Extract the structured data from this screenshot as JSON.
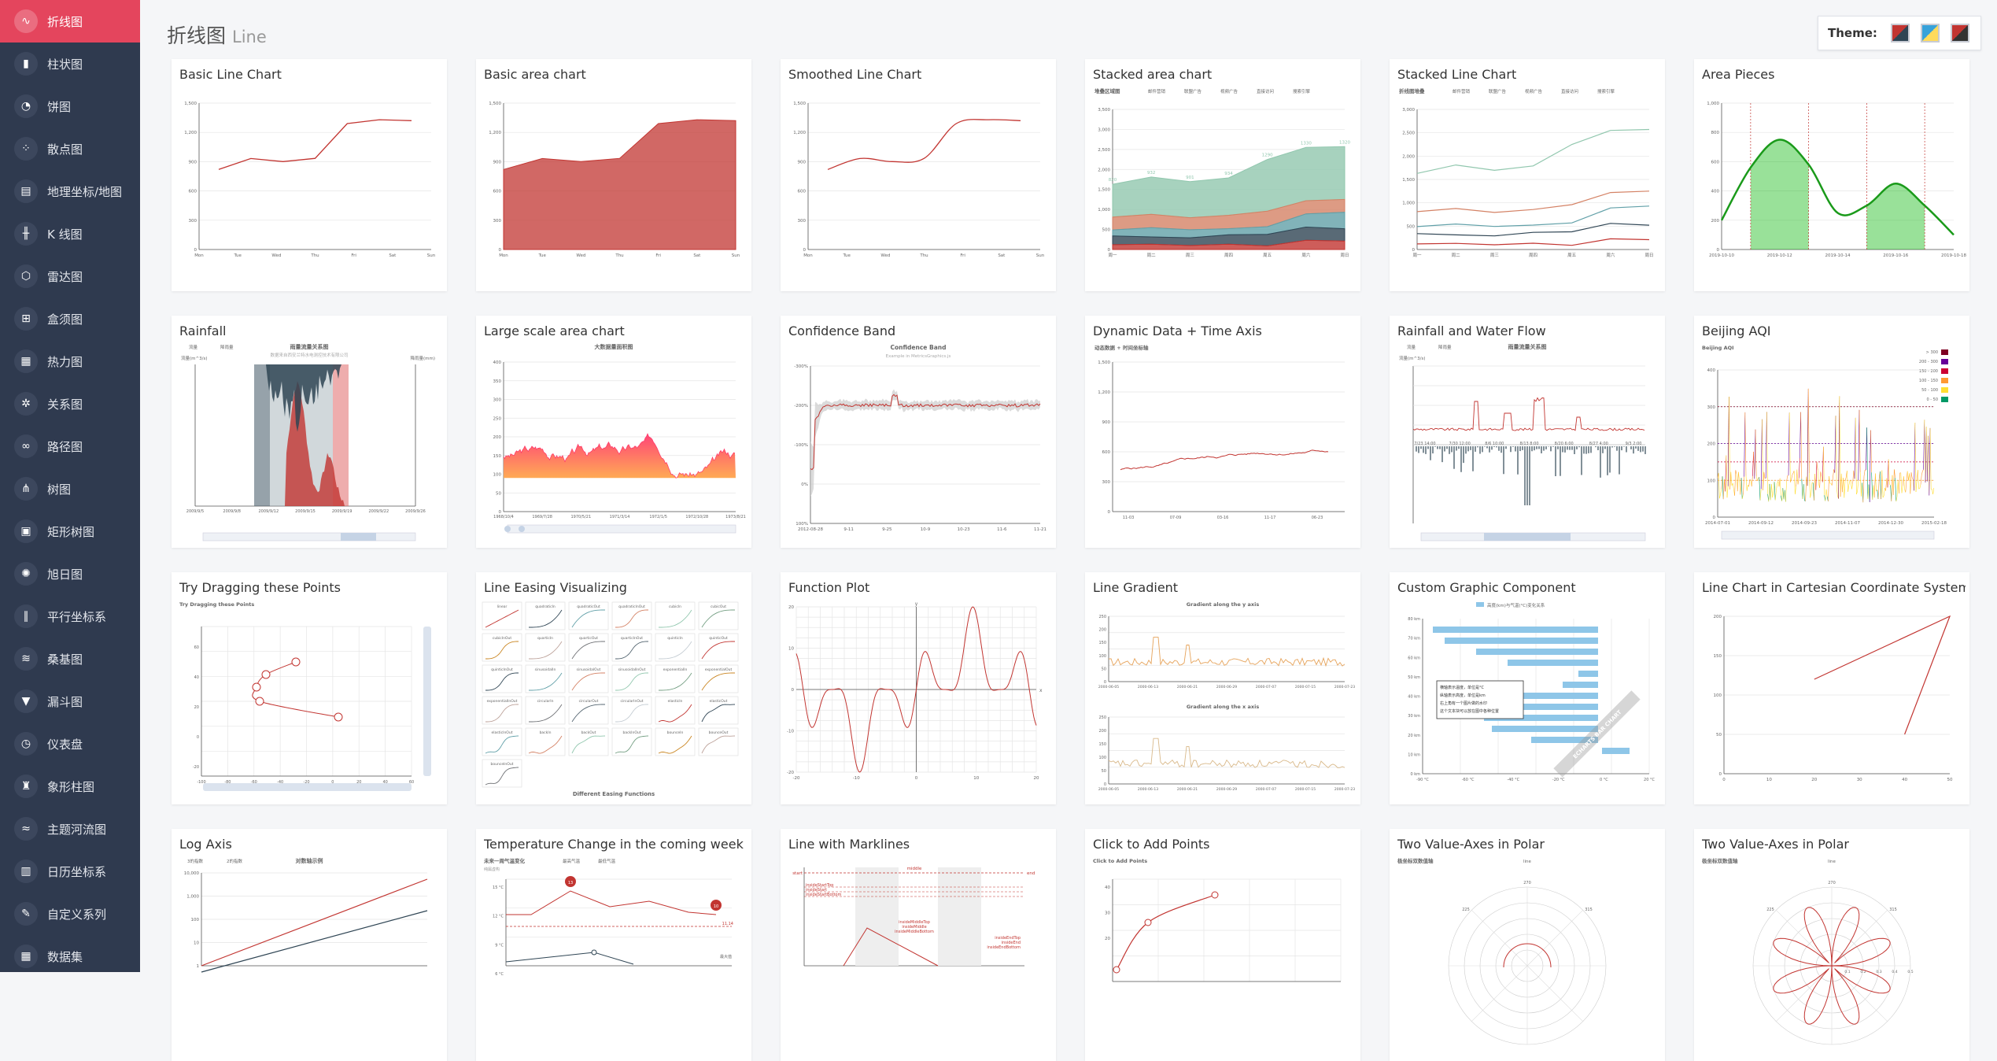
{
  "page": {
    "title": "折线图",
    "subtitle": "Line"
  },
  "theme": {
    "label": "Theme:",
    "options": [
      {
        "name": "default",
        "color": "#c23531"
      },
      {
        "name": "light",
        "color": "#37a2da"
      },
      {
        "name": "dark",
        "color": "#c23531"
      }
    ]
  },
  "sidebar": {
    "items": [
      {
        "label": "折线图",
        "icon": "line-chart-icon",
        "glyph": "∿",
        "active": true
      },
      {
        "label": "柱状图",
        "icon": "bar-chart-icon",
        "glyph": "▮"
      },
      {
        "label": "饼图",
        "icon": "pie-chart-icon",
        "glyph": "◔"
      },
      {
        "label": "散点图",
        "icon": "scatter-icon",
        "glyph": "⁘"
      },
      {
        "label": "地理坐标/地图",
        "icon": "map-icon",
        "glyph": "▤"
      },
      {
        "label": "K 线图",
        "icon": "candlestick-icon",
        "glyph": "╫"
      },
      {
        "label": "雷达图",
        "icon": "radar-icon",
        "glyph": "⬡"
      },
      {
        "label": "盒须图",
        "icon": "boxplot-icon",
        "glyph": "⊞"
      },
      {
        "label": "热力图",
        "icon": "heatmap-icon",
        "glyph": "▦"
      },
      {
        "label": "关系图",
        "icon": "graph-icon",
        "glyph": "✲"
      },
      {
        "label": "路径图",
        "icon": "lines-icon",
        "glyph": "∞"
      },
      {
        "label": "树图",
        "icon": "tree-icon",
        "glyph": "⋔"
      },
      {
        "label": "矩形树图",
        "icon": "treemap-icon",
        "glyph": "▣"
      },
      {
        "label": "旭日图",
        "icon": "sunburst-icon",
        "glyph": "✺"
      },
      {
        "label": "平行坐标系",
        "icon": "parallel-icon",
        "glyph": "∥"
      },
      {
        "label": "桑基图",
        "icon": "sankey-icon",
        "glyph": "≋"
      },
      {
        "label": "漏斗图",
        "icon": "funnel-icon",
        "glyph": "▼"
      },
      {
        "label": "仪表盘",
        "icon": "gauge-icon",
        "glyph": "◷"
      },
      {
        "label": "象形柱图",
        "icon": "pictorial-bar-icon",
        "glyph": "♜"
      },
      {
        "label": "主题河流图",
        "icon": "theme-river-icon",
        "glyph": "≈"
      },
      {
        "label": "日历坐标系",
        "icon": "calendar-icon",
        "glyph": "▥"
      },
      {
        "label": "自定义系列",
        "icon": "custom-series-icon",
        "glyph": "✎"
      },
      {
        "label": "数据集",
        "icon": "dataset-icon",
        "glyph": "▦"
      }
    ]
  },
  "cards": [
    {
      "title": "Basic Line Chart",
      "kind": "basic-line"
    },
    {
      "title": "Basic area chart",
      "kind": "basic-area"
    },
    {
      "title": "Smoothed Line Chart",
      "kind": "smooth-line"
    },
    {
      "title": "Stacked area chart",
      "kind": "stacked-area",
      "inner_title": "堆叠区域图",
      "legend": [
        "邮件营销",
        "联盟广告",
        "视频广告",
        "直接访问",
        "搜索引擎"
      ],
      "categories": [
        "周一",
        "周二",
        "周三",
        "周四",
        "周五",
        "周六",
        "周日"
      ],
      "labels": [
        "820",
        "932",
        "901",
        "934",
        "1290",
        "1330",
        "1320"
      ],
      "ticks": [
        "0",
        "500",
        "1,000",
        "1,500",
        "2,000",
        "2,500",
        "3,000",
        "3,500"
      ]
    },
    {
      "title": "Stacked Line Chart",
      "kind": "stacked-line",
      "inner_title": "折线图堆叠",
      "legend": [
        "邮件营销",
        "联盟广告",
        "视频广告",
        "直接访问",
        "搜索引擎"
      ],
      "categories": [
        "周一",
        "周二",
        "周三",
        "周四",
        "周五",
        "周六",
        "周日"
      ],
      "ticks": [
        "0",
        "500",
        "1,000",
        "1,500",
        "2,000",
        "2,500",
        "3,000"
      ]
    },
    {
      "title": "Area Pieces",
      "kind": "area-pieces",
      "categories": [
        "2019-10-10",
        "2019-10-12",
        "2019-10-14",
        "2019-10-16",
        "2019-10-18"
      ],
      "ticks": [
        "0",
        "200",
        "400",
        "600",
        "800",
        "1,000"
      ]
    },
    {
      "title": "Rainfall",
      "kind": "rainfall",
      "inner_title": "雨量流量关系图",
      "inner_subtitle": "数据来自西安兰特水电测控技术有限公司",
      "legend": [
        "流量",
        "降雨量"
      ],
      "y_left": "流量(m^3/s)",
      "y_right": "降雨量(mm)",
      "categories": [
        "2009/9/5 12:00",
        "2009/9/8 22:00",
        "2009/9/12 8:00",
        "2009/9/15 19:00",
        "2009/9/19 5:00",
        "2009/9/22 16:00",
        "2009/9/26 2:00"
      ]
    },
    {
      "title": "Large scale area chart",
      "kind": "large-area",
      "inner_title": "大数据量面积图",
      "categories": [
        "1968/10/4",
        "1969/7/28",
        "1970/5/21",
        "1971/3/14",
        "1972/1/5",
        "1972/10/28",
        "1973/8/21"
      ],
      "ticks": [
        "0",
        "50",
        "100",
        "150",
        "200",
        "250",
        "300",
        "350",
        "400"
      ]
    },
    {
      "title": "Confidence Band",
      "kind": "confidence",
      "inner_title": "Confidence Band",
      "inner_subtitle": "Example in MetricsGraphics.js",
      "categories": [
        "2012-08-28",
        "9-11",
        "9-25",
        "10-9",
        "10-23",
        "11-6",
        "11-21"
      ],
      "ticks": [
        "-300%",
        "-200%",
        "-100%",
        "0%",
        "100%"
      ]
    },
    {
      "title": "Dynamic Data + Time Axis",
      "kind": "dynamic",
      "inner_title": "动态数据 + 时间坐标轴",
      "categories": [
        "11-03 1997",
        "07-09 1998",
        "03-16 1999",
        "11-17 1999",
        "06-23 2000"
      ],
      "ticks": [
        "0",
        "300",
        "600",
        "900",
        "1,200",
        "1,500"
      ]
    },
    {
      "title": "Rainfall and Water Flow",
      "kind": "rain-flow",
      "inner_title": "雨量流量关系图",
      "legend": [
        "流量",
        "降雨量"
      ],
      "y_left": "流量(m^3/s)",
      "y_right": "降雨量(mm)",
      "categories": [
        "7/23 14:00",
        "7/30 12:00",
        "8/6 10:00",
        "8/13 8:00",
        "8/20 6:00",
        "8/27 4:00",
        "9/3 2:00"
      ]
    },
    {
      "title": "Beijing AQI",
      "kind": "aqi",
      "inner_title": "Beijing AQI",
      "categories": [
        "2014-07-01",
        "2014-09-12",
        "2014-09-23",
        "2014-11-07",
        "2014-12-30",
        "2015-02-18"
      ],
      "pieces": [
        "> 300",
        "200 - 300",
        "150 - 200",
        "100 - 150",
        "50 - 100",
        "0 - 50"
      ],
      "piece_colors": [
        "#7e0023",
        "#660099",
        "#cc0033",
        "#ff9933",
        "#ffde33",
        "#096"
      ],
      "ticks": [
        "0",
        "100",
        "200",
        "300",
        "400"
      ]
    },
    {
      "title": "Try Dragging these Points",
      "kind": "drag",
      "inner_title": "Try Dragging these Points",
      "ticks": [
        "-100",
        "-80",
        "-60",
        "-40",
        "-20",
        "0",
        "20",
        "40",
        "60"
      ]
    },
    {
      "title": "Line Easing Visualizing",
      "kind": "easing",
      "inner_title": "Different Easing Functions",
      "easings": [
        "linear",
        "quadraticIn",
        "quadraticOut",
        "quadraticInOut",
        "cubicIn",
        "cubicOut",
        "cubicInOut",
        "quarticIn",
        "quarticOut",
        "quarticInOut",
        "quinticIn",
        "quinticOut",
        "quinticInOut",
        "sinusoidalIn",
        "sinusoidalOut",
        "sinusoidalInOut",
        "exponentialIn",
        "exponentialOut",
        "exponentialInOut",
        "circularIn",
        "circularOut",
        "circularInOut",
        "elasticIn",
        "elasticOut",
        "elasticInOut",
        "backIn",
        "backOut",
        "backInOut",
        "bounceIn",
        "bounceOut",
        "bounceInOut"
      ]
    },
    {
      "title": "Function Plot",
      "kind": "function",
      "xticks": [
        "-20",
        "-10",
        "0",
        "10",
        "20"
      ],
      "yticks": [
        "20",
        "10",
        "0",
        "-10",
        "-20"
      ],
      "xlabel": "x",
      "ylabel": "y"
    },
    {
      "title": "Line Gradient",
      "kind": "gradient",
      "inner_title": "Gradient along the y axis",
      "inner_title2": "Gradient along the x axis",
      "categories": [
        "2000-06-05",
        "2000-06-13",
        "2000-06-21",
        "2000-06-29",
        "2000-07-07",
        "2000-07-15",
        "2000-07-23"
      ]
    },
    {
      "title": "Custom Graphic Component",
      "kind": "custom-graphic",
      "legend": [
        "高度(km)与气温(°C)变化关系"
      ],
      "tooltip": [
        "横轴表示温度，单位是°C",
        "纵轴表示高度，单位是km",
        "右上角有一个图片做的水印",
        "这个文本块可以放在图中各种位置"
      ],
      "watermark": "ECHARTS BAR CHART",
      "yticks": [
        "80 km",
        "70 km",
        "60 km",
        "50 km",
        "40 km",
        "30 km",
        "20 km",
        "10 km",
        "0 km"
      ],
      "xticks": [
        "-90 °C",
        "-60 °C",
        "-40 °C",
        "-20 °C",
        "0 °C",
        "20 °C"
      ]
    },
    {
      "title": "Line Chart in Cartesian Coordinate System",
      "kind": "cartesian",
      "xticks": [
        "0",
        "10",
        "20",
        "30",
        "40",
        "50"
      ],
      "yticks": [
        "0",
        "50",
        "100",
        "150",
        "200"
      ]
    },
    {
      "title": "Log Axis",
      "kind": "log",
      "inner_title": "对数轴示例",
      "legend": [
        "3的指数",
        "2的指数"
      ],
      "ticks": [
        "10,000",
        "1,000",
        "100",
        "10",
        "1"
      ]
    },
    {
      "title": "Temperature Change in the coming week",
      "kind": "temperature",
      "inner_title": "未来一周气温变化",
      "inner_subtitle": "纯属虚构",
      "legend": [
        "最高气温",
        "最低气温"
      ],
      "ticks": [
        "15 °C",
        "12 °C",
        "9 °C",
        "6 °C"
      ],
      "marks": [
        "13",
        "10",
        "11.14"
      ],
      "mark_label": "最大值"
    },
    {
      "title": "Line with Marklines",
      "kind": "marklines",
      "labels": [
        "start",
        "middle",
        "end",
        "insideStartTop",
        "insideStart",
        "insideStartBottom",
        "insideMiddleTop",
        "insideMiddle",
        "insideMiddleBottom",
        "insideEndTop",
        "insideEnd",
        "insideEndBottom"
      ]
    },
    {
      "title": "Click to Add Points",
      "kind": "click-add",
      "inner_title": "Click to Add Points",
      "ticks": [
        "40",
        "30",
        "20"
      ]
    },
    {
      "title": "Two Value-Axes in Polar",
      "kind": "polar1",
      "inner_title": "极坐标双数值轴",
      "legend": [
        "line"
      ],
      "ticks": [
        "270",
        "225",
        "315"
      ]
    },
    {
      "title": "Two Value-Axes in Polar",
      "kind": "polar2",
      "inner_title": "极坐标双数值轴",
      "legend": [
        "line"
      ],
      "ticks": [
        "270",
        "225",
        "315",
        "0.1",
        "0.2",
        "0.3",
        "0.4",
        "0.5"
      ]
    }
  ]
}
